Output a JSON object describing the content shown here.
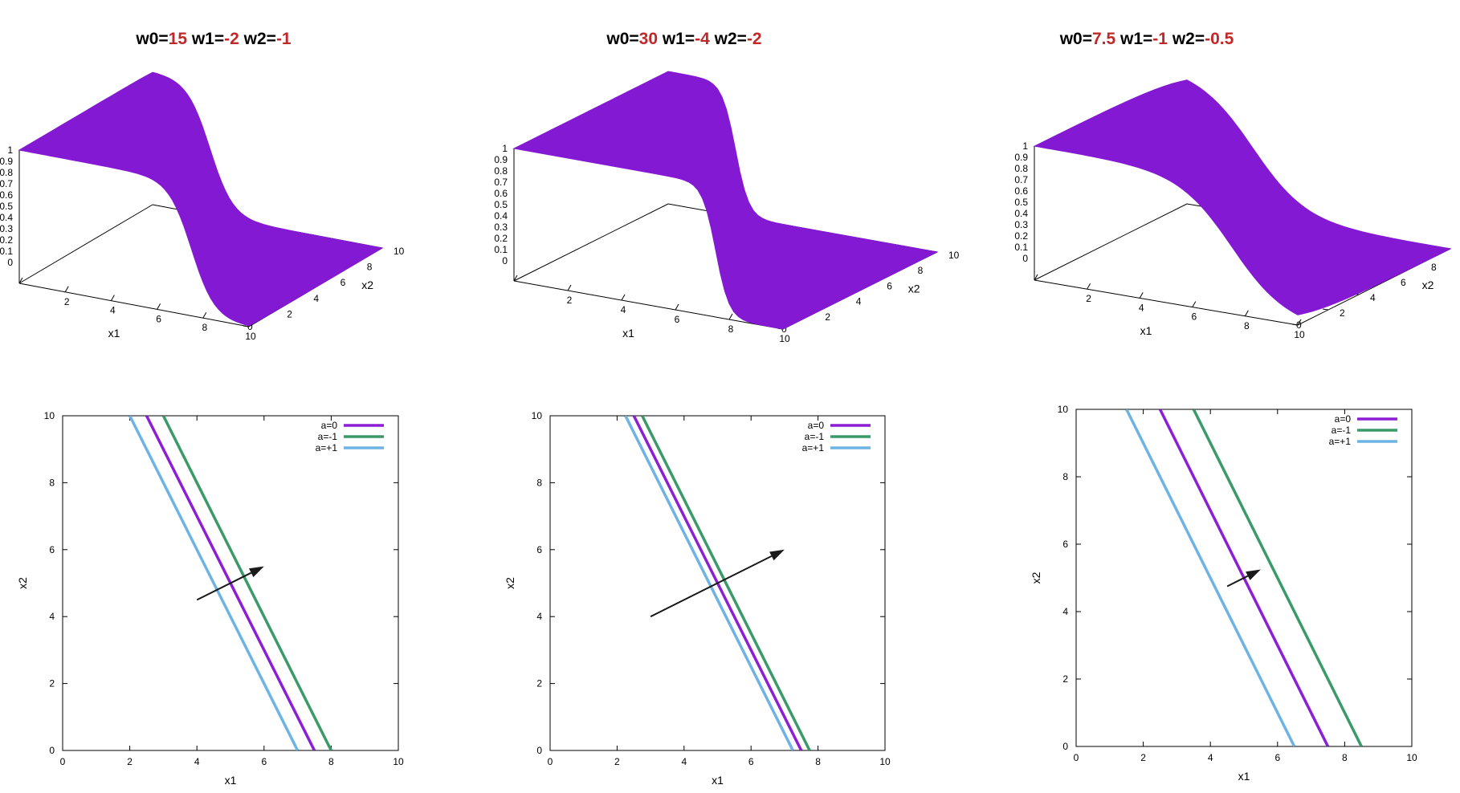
{
  "colors": {
    "surface": "#8419D3",
    "line_a0": "#8C1FD6",
    "line_am1": "#3A9A68",
    "line_ap1": "#6DB3E3",
    "title_value": "#C0282A",
    "arrow": "#1a1a1a"
  },
  "chart_data": [
    {
      "type": "surface",
      "title_parts": [
        {
          "text": "w0=",
          "highlight": false
        },
        {
          "text": "15",
          "highlight": true
        },
        {
          "text": " w1=",
          "highlight": false
        },
        {
          "text": "-2",
          "highlight": true
        },
        {
          "text": " w2=",
          "highlight": false
        },
        {
          "text": "-1",
          "highlight": true
        }
      ],
      "w0": 15,
      "w1": -2,
      "w2": -1,
      "xlabel": "x1",
      "ylabel": "x2",
      "xlim": [
        0,
        10
      ],
      "ylim": [
        0,
        10
      ],
      "zlim": [
        0,
        1
      ],
      "x_ticks": [
        "0",
        "2",
        "4",
        "6",
        "8",
        "10"
      ],
      "y_ticks": [
        "0",
        "2",
        "4",
        "6",
        "8",
        "10"
      ],
      "z_ticks": [
        "0",
        "0.1",
        "0.2",
        "0.3",
        "0.4",
        "0.5",
        "0.6",
        "0.7",
        "0.8",
        "0.9",
        "1"
      ]
    },
    {
      "type": "surface",
      "title_parts": [
        {
          "text": "w0=",
          "highlight": false
        },
        {
          "text": "30",
          "highlight": true
        },
        {
          "text": " w1=",
          "highlight": false
        },
        {
          "text": "-4",
          "highlight": true
        },
        {
          "text": " w2=",
          "highlight": false
        },
        {
          "text": "-2",
          "highlight": true
        }
      ],
      "w0": 30,
      "w1": -4,
      "w2": -2,
      "xlabel": "x1",
      "ylabel": "x2",
      "xlim": [
        0,
        10
      ],
      "ylim": [
        0,
        10
      ],
      "zlim": [
        0,
        1
      ],
      "x_ticks": [
        "0",
        "2",
        "4",
        "6",
        "8",
        "10"
      ],
      "y_ticks": [
        "0",
        "2",
        "4",
        "6",
        "8",
        "10"
      ],
      "z_ticks": [
        "0",
        "0.1",
        "0.2",
        "0.3",
        "0.4",
        "0.5",
        "0.6",
        "0.7",
        "0.8",
        "0.9",
        "1"
      ]
    },
    {
      "type": "surface",
      "title_parts": [
        {
          "text": "w0=",
          "highlight": false
        },
        {
          "text": "7.5",
          "highlight": true
        },
        {
          "text": " w1=",
          "highlight": false
        },
        {
          "text": "-1",
          "highlight": true
        },
        {
          "text": " w2=",
          "highlight": false
        },
        {
          "text": "-0.5",
          "highlight": true
        }
      ],
      "w0": 7.5,
      "w1": -1,
      "w2": -0.5,
      "xlabel": "x1",
      "ylabel": "x2",
      "xlim": [
        0,
        10
      ],
      "ylim": [
        0,
        10
      ],
      "zlim": [
        0,
        1
      ],
      "x_ticks": [
        "0",
        "2",
        "4",
        "6",
        "8",
        "10"
      ],
      "y_ticks": [
        "0",
        "2",
        "4",
        "6",
        "8",
        "10"
      ],
      "z_ticks": [
        "0",
        "0.1",
        "0.2",
        "0.3",
        "0.4",
        "0.5",
        "0.6",
        "0.7",
        "0.8",
        "0.9",
        "1"
      ]
    },
    {
      "type": "line",
      "xlabel": "x1",
      "ylabel": "x2",
      "xlim": [
        0,
        10
      ],
      "ylim": [
        0,
        10
      ],
      "x_ticks": [
        "0",
        "2",
        "4",
        "6",
        "8",
        "10"
      ],
      "y_ticks": [
        "0",
        "2",
        "4",
        "6",
        "8",
        "10"
      ],
      "legend": "top-right",
      "series": [
        {
          "name": "a=0",
          "color_key": "line_a0",
          "x": [
            2.5,
            7.5
          ],
          "y": [
            10,
            0
          ]
        },
        {
          "name": "a=-1",
          "color_key": "line_am1",
          "x": [
            3,
            8
          ],
          "y": [
            10,
            0
          ]
        },
        {
          "name": "a=+1",
          "color_key": "line_ap1",
          "x": [
            2,
            7
          ],
          "y": [
            10,
            0
          ]
        }
      ],
      "arrow": {
        "x1": 4,
        "y1": 4.5,
        "x2": 6,
        "y2": 5.5
      }
    },
    {
      "type": "line",
      "xlabel": "x1",
      "ylabel": "x2",
      "xlim": [
        0,
        10
      ],
      "ylim": [
        0,
        10
      ],
      "x_ticks": [
        "0",
        "2",
        "4",
        "6",
        "8",
        "10"
      ],
      "y_ticks": [
        "0",
        "2",
        "4",
        "6",
        "8",
        "10"
      ],
      "legend": "top-right",
      "series": [
        {
          "name": "a=0",
          "color_key": "line_a0",
          "x": [
            2.5,
            7.5
          ],
          "y": [
            10,
            0
          ]
        },
        {
          "name": "a=-1",
          "color_key": "line_am1",
          "x": [
            2.75,
            7.75
          ],
          "y": [
            10,
            0
          ]
        },
        {
          "name": "a=+1",
          "color_key": "line_ap1",
          "x": [
            2.25,
            7.25
          ],
          "y": [
            10,
            0
          ]
        }
      ],
      "arrow": {
        "x1": 3,
        "y1": 4,
        "x2": 7,
        "y2": 6
      }
    },
    {
      "type": "line",
      "xlabel": "x1",
      "ylabel": "x2",
      "xlim": [
        0,
        10
      ],
      "ylim": [
        0,
        10
      ],
      "x_ticks": [
        "0",
        "2",
        "4",
        "6",
        "8",
        "10"
      ],
      "y_ticks": [
        "0",
        "2",
        "4",
        "6",
        "8",
        "10"
      ],
      "legend": "top-right",
      "series": [
        {
          "name": "a=0",
          "color_key": "line_a0",
          "x": [
            2.5,
            7.5
          ],
          "y": [
            10,
            0
          ]
        },
        {
          "name": "a=-1",
          "color_key": "line_am1",
          "x": [
            3.5,
            8.5
          ],
          "y": [
            10,
            0
          ]
        },
        {
          "name": "a=+1",
          "color_key": "line_ap1",
          "x": [
            1.5,
            6.5
          ],
          "y": [
            10,
            0
          ]
        }
      ],
      "arrow": {
        "x1": 4.5,
        "y1": 4.75,
        "x2": 5.5,
        "y2": 5.25
      }
    }
  ]
}
